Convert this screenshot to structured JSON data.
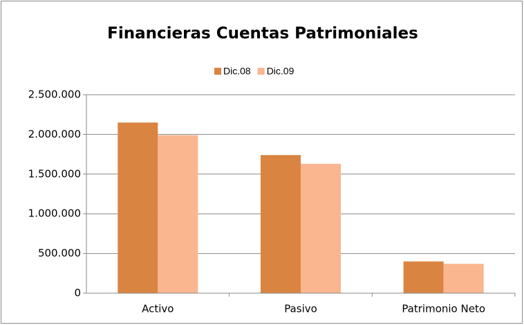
{
  "chart_data": {
    "type": "bar",
    "title": "Financieras Cuentas Patrimoniales",
    "categories": [
      "Activo",
      "Pasivo",
      "Patrimonio Neto"
    ],
    "series": [
      {
        "name": "Dic.08",
        "color": "#da8442",
        "values": [
          2150000,
          1740000,
          400000
        ]
      },
      {
        "name": "Dic.09",
        "color": "#f9b68f",
        "values": [
          1990000,
          1630000,
          370000
        ]
      }
    ],
    "ylim": [
      0,
      2500000
    ],
    "yticks": [
      0,
      {
        "value": 500000,
        "label": "500.000"
      },
      {
        "value": 1000000,
        "label": "1.000.000"
      },
      {
        "value": 1500000,
        "label": "1.500.000"
      },
      {
        "value": 2000000,
        "label": "2.000.000"
      },
      {
        "value": 2500000,
        "label": "2.500.000"
      }
    ],
    "grid": true,
    "legend": "top"
  }
}
